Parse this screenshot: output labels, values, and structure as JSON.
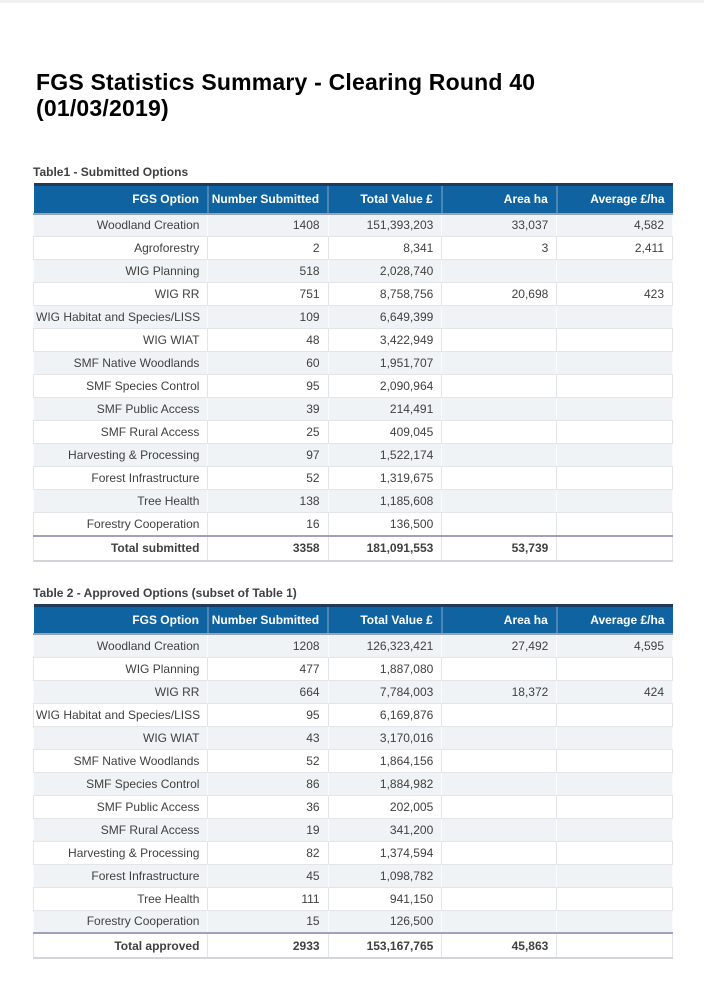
{
  "page": {
    "title": "FGS Statistics Summary - Clearing Round 40 (01/03/2019)"
  },
  "columns": [
    "FGS Option",
    "Number Submitted",
    "Total Value £",
    "Area ha",
    "Average £/ha"
  ],
  "tables": {
    "table1": {
      "caption": "Table1 - Submitted Options",
      "rows": [
        [
          "Woodland Creation",
          "1408",
          "151,393,203",
          "33,037",
          "4,582"
        ],
        [
          "Agroforestry",
          "2",
          "8,341",
          "3",
          "2,411"
        ],
        [
          "WIG Planning",
          "518",
          "2,028,740",
          "",
          ""
        ],
        [
          "WIG RR",
          "751",
          "8,758,756",
          "20,698",
          "423"
        ],
        [
          "WIG Habitat and Species/LISS",
          "109",
          "6,649,399",
          "",
          ""
        ],
        [
          "WIG WIAT",
          "48",
          "3,422,949",
          "",
          ""
        ],
        [
          "SMF Native Woodlands",
          "60",
          "1,951,707",
          "",
          ""
        ],
        [
          "SMF Species Control",
          "95",
          "2,090,964",
          "",
          ""
        ],
        [
          "SMF Public Access",
          "39",
          "214,491",
          "",
          ""
        ],
        [
          "SMF Rural Access",
          "25",
          "409,045",
          "",
          ""
        ],
        [
          "Harvesting & Processing",
          "97",
          "1,522,174",
          "",
          ""
        ],
        [
          "Forest Infrastructure",
          "52",
          "1,319,675",
          "",
          ""
        ],
        [
          "Tree Health",
          "138",
          "1,185,608",
          "",
          ""
        ],
        [
          "Forestry Cooperation",
          "16",
          "136,500",
          "",
          ""
        ]
      ],
      "total": [
        "Total submitted",
        "3358",
        "181,091,553",
        "53,739",
        ""
      ]
    },
    "table2": {
      "caption": "Table 2 - Approved Options (subset of Table 1)",
      "rows": [
        [
          "Woodland Creation",
          "1208",
          "126,323,421",
          "27,492",
          "4,595"
        ],
        [
          "WIG Planning",
          "477",
          "1,887,080",
          "",
          ""
        ],
        [
          "WIG RR",
          "664",
          "7,784,003",
          "18,372",
          "424"
        ],
        [
          "WIG Habitat and Species/LISS",
          "95",
          "6,169,876",
          "",
          ""
        ],
        [
          "WIG WIAT",
          "43",
          "3,170,016",
          "",
          ""
        ],
        [
          "SMF Native Woodlands",
          "52",
          "1,864,156",
          "",
          ""
        ],
        [
          "SMF Species Control",
          "86",
          "1,884,982",
          "",
          ""
        ],
        [
          "SMF Public Access",
          "36",
          "202,005",
          "",
          ""
        ],
        [
          "SMF Rural Access",
          "19",
          "341,200",
          "",
          ""
        ],
        [
          "Harvesting & Processing",
          "82",
          "1,374,594",
          "",
          ""
        ],
        [
          "Forest Infrastructure",
          "45",
          "1,098,782",
          "",
          ""
        ],
        [
          "Tree Health",
          "111",
          "941,150",
          "",
          ""
        ],
        [
          "Forestry Cooperation",
          "15",
          "126,500",
          "",
          ""
        ]
      ],
      "total": [
        "Total approved",
        "2933",
        "153,167,765",
        "45,863",
        ""
      ]
    }
  },
  "colors": {
    "header_bg": "#1063A1",
    "header_text": "#FFFFFF",
    "header_top_border": "#1E3A5F",
    "header_divider": "#4D86B4",
    "header_bottom_border": "#9AA2AB",
    "row_alt_bg": "#EFF3F6",
    "row_bg": "#FFFFFF",
    "cell_border": "#E2E6EA",
    "total_top_border": "#A39FC0",
    "body_text": "#404040",
    "title_text": "#000000"
  }
}
